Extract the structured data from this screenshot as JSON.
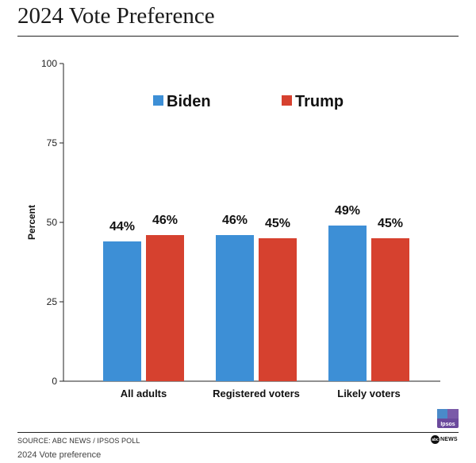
{
  "header": {
    "title": "2024 Vote Preference"
  },
  "chart_data": {
    "type": "bar",
    "categories": [
      "All adults",
      "Registered voters",
      "Likely voters"
    ],
    "series": [
      {
        "name": "Biden",
        "color": "#3d8fd6",
        "values": [
          44,
          46,
          49
        ],
        "labels": [
          "44%",
          "46%",
          "49%"
        ]
      },
      {
        "name": "Trump",
        "color": "#d6412f",
        "values": [
          46,
          45,
          45
        ],
        "labels": [
          "46%",
          "45%",
          "45%"
        ]
      }
    ],
    "ylabel": "Percent",
    "ylim": [
      0,
      100
    ],
    "yticks": [
      0,
      25,
      50,
      75,
      100
    ],
    "grid": false,
    "legend_position": "top"
  },
  "footer": {
    "source": "SOURCE: ABC NEWS / IPSOS POLL",
    "caption": "2024 Vote preference",
    "ipsos_logo_text": "Ipsos",
    "abc_logo_mark": "abc",
    "abc_logo_text": "NEWS"
  }
}
